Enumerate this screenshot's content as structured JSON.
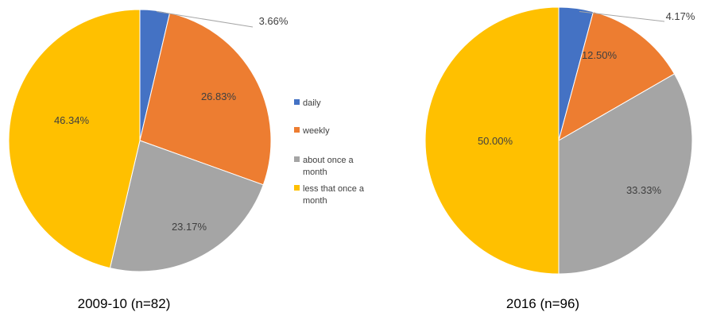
{
  "chart_data": [
    {
      "type": "pie",
      "caption": "2009-10 (n=82)",
      "categories": [
        "daily",
        "weekly",
        "about once a month",
        "less that once a month"
      ],
      "values": [
        3.66,
        26.83,
        23.17,
        46.34
      ],
      "value_labels": [
        "3.66%",
        "26.83%",
        "23.17%",
        "46.34%"
      ],
      "start": "12 o'clock, clockwise"
    },
    {
      "type": "pie",
      "caption": "2016 (n=96)",
      "categories": [
        "daily",
        "weekly",
        "about once a month",
        "less that once a month"
      ],
      "values": [
        4.17,
        12.5,
        33.33,
        50.0
      ],
      "value_labels": [
        "4.17%",
        "12.50%",
        "33.33%",
        "50.00%"
      ],
      "start": "12 o'clock, clockwise"
    }
  ],
  "legend": {
    "placement": "center, between charts",
    "items": [
      {
        "label_lines": [
          "daily"
        ],
        "color": "#4472C4"
      },
      {
        "label_lines": [
          "weekly"
        ],
        "color": "#ED7D31"
      },
      {
        "label_lines": [
          "about once a",
          "month"
        ],
        "color": "#A5A5A5"
      },
      {
        "label_lines": [
          "less that once a",
          "month"
        ],
        "color": "#FFC000"
      }
    ]
  },
  "colors": [
    "#4472C4",
    "#ED7D31",
    "#A5A5A5",
    "#FFC000"
  ]
}
